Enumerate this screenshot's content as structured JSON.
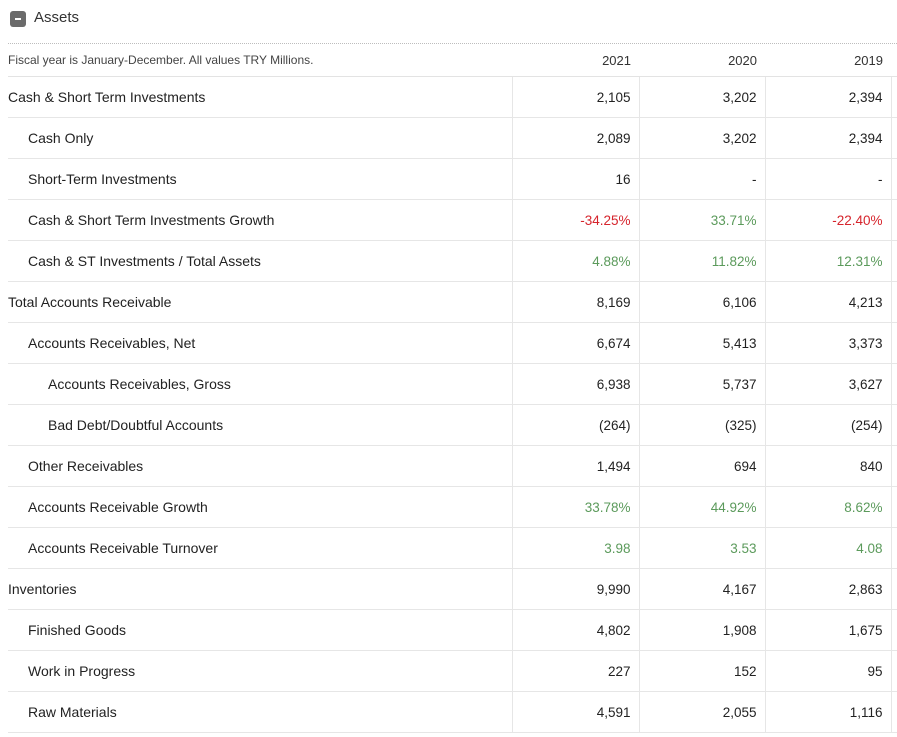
{
  "section": {
    "title": "Assets",
    "toggle_symbol": "-"
  },
  "table": {
    "note": "Fiscal year is January-December. All values TRY Millions.",
    "years": [
      "2021",
      "2020",
      "2019"
    ],
    "rows": [
      {
        "label": "Cash & Short Term Investments",
        "level": 0,
        "values": [
          "2,105",
          "3,202",
          "2,394"
        ],
        "tones": [
          "",
          "",
          ""
        ]
      },
      {
        "label": "Cash Only",
        "level": 1,
        "values": [
          "2,089",
          "3,202",
          "2,394"
        ],
        "tones": [
          "",
          "",
          ""
        ]
      },
      {
        "label": "Short-Term Investments",
        "level": 1,
        "values": [
          "16",
          "-",
          "-"
        ],
        "tones": [
          "",
          "",
          ""
        ]
      },
      {
        "label": "Cash & Short Term Investments Growth",
        "level": 1,
        "values": [
          "-34.25%",
          "33.71%",
          "-22.40%"
        ],
        "tones": [
          "neg",
          "pos",
          "neg"
        ]
      },
      {
        "label": "Cash & ST Investments / Total Assets",
        "level": 1,
        "values": [
          "4.88%",
          "11.82%",
          "12.31%"
        ],
        "tones": [
          "pos",
          "pos",
          "pos"
        ]
      },
      {
        "label": "Total Accounts Receivable",
        "level": 0,
        "values": [
          "8,169",
          "6,106",
          "4,213"
        ],
        "tones": [
          "",
          "",
          ""
        ]
      },
      {
        "label": "Accounts Receivables, Net",
        "level": 1,
        "values": [
          "6,674",
          "5,413",
          "3,373"
        ],
        "tones": [
          "",
          "",
          ""
        ]
      },
      {
        "label": "Accounts Receivables, Gross",
        "level": 2,
        "values": [
          "6,938",
          "5,737",
          "3,627"
        ],
        "tones": [
          "",
          "",
          ""
        ]
      },
      {
        "label": "Bad Debt/Doubtful Accounts",
        "level": 2,
        "values": [
          "(264)",
          "(325)",
          "(254)"
        ],
        "tones": [
          "",
          "",
          ""
        ]
      },
      {
        "label": "Other Receivables",
        "level": 1,
        "values": [
          "1,494",
          "694",
          "840"
        ],
        "tones": [
          "",
          "",
          ""
        ]
      },
      {
        "label": "Accounts Receivable Growth",
        "level": 1,
        "values": [
          "33.78%",
          "44.92%",
          "8.62%"
        ],
        "tones": [
          "pos",
          "pos",
          "pos"
        ]
      },
      {
        "label": "Accounts Receivable Turnover",
        "level": 1,
        "values": [
          "3.98",
          "3.53",
          "4.08"
        ],
        "tones": [
          "pos",
          "pos",
          "pos"
        ]
      },
      {
        "label": "Inventories",
        "level": 0,
        "values": [
          "9,990",
          "4,167",
          "2,863"
        ],
        "tones": [
          "",
          "",
          ""
        ]
      },
      {
        "label": "Finished Goods",
        "level": 1,
        "values": [
          "4,802",
          "1,908",
          "1,675"
        ],
        "tones": [
          "",
          "",
          ""
        ]
      },
      {
        "label": "Work in Progress",
        "level": 1,
        "values": [
          "227",
          "152",
          "95"
        ],
        "tones": [
          "",
          "",
          ""
        ]
      },
      {
        "label": "Raw Materials",
        "level": 1,
        "values": [
          "4,591",
          "2,055",
          "1,116"
        ],
        "tones": [
          "",
          "",
          ""
        ]
      }
    ]
  },
  "colors": {
    "negative": "#d6242c",
    "positive": "#5b9a5b",
    "toggle_bg": "#6b6b6b"
  }
}
